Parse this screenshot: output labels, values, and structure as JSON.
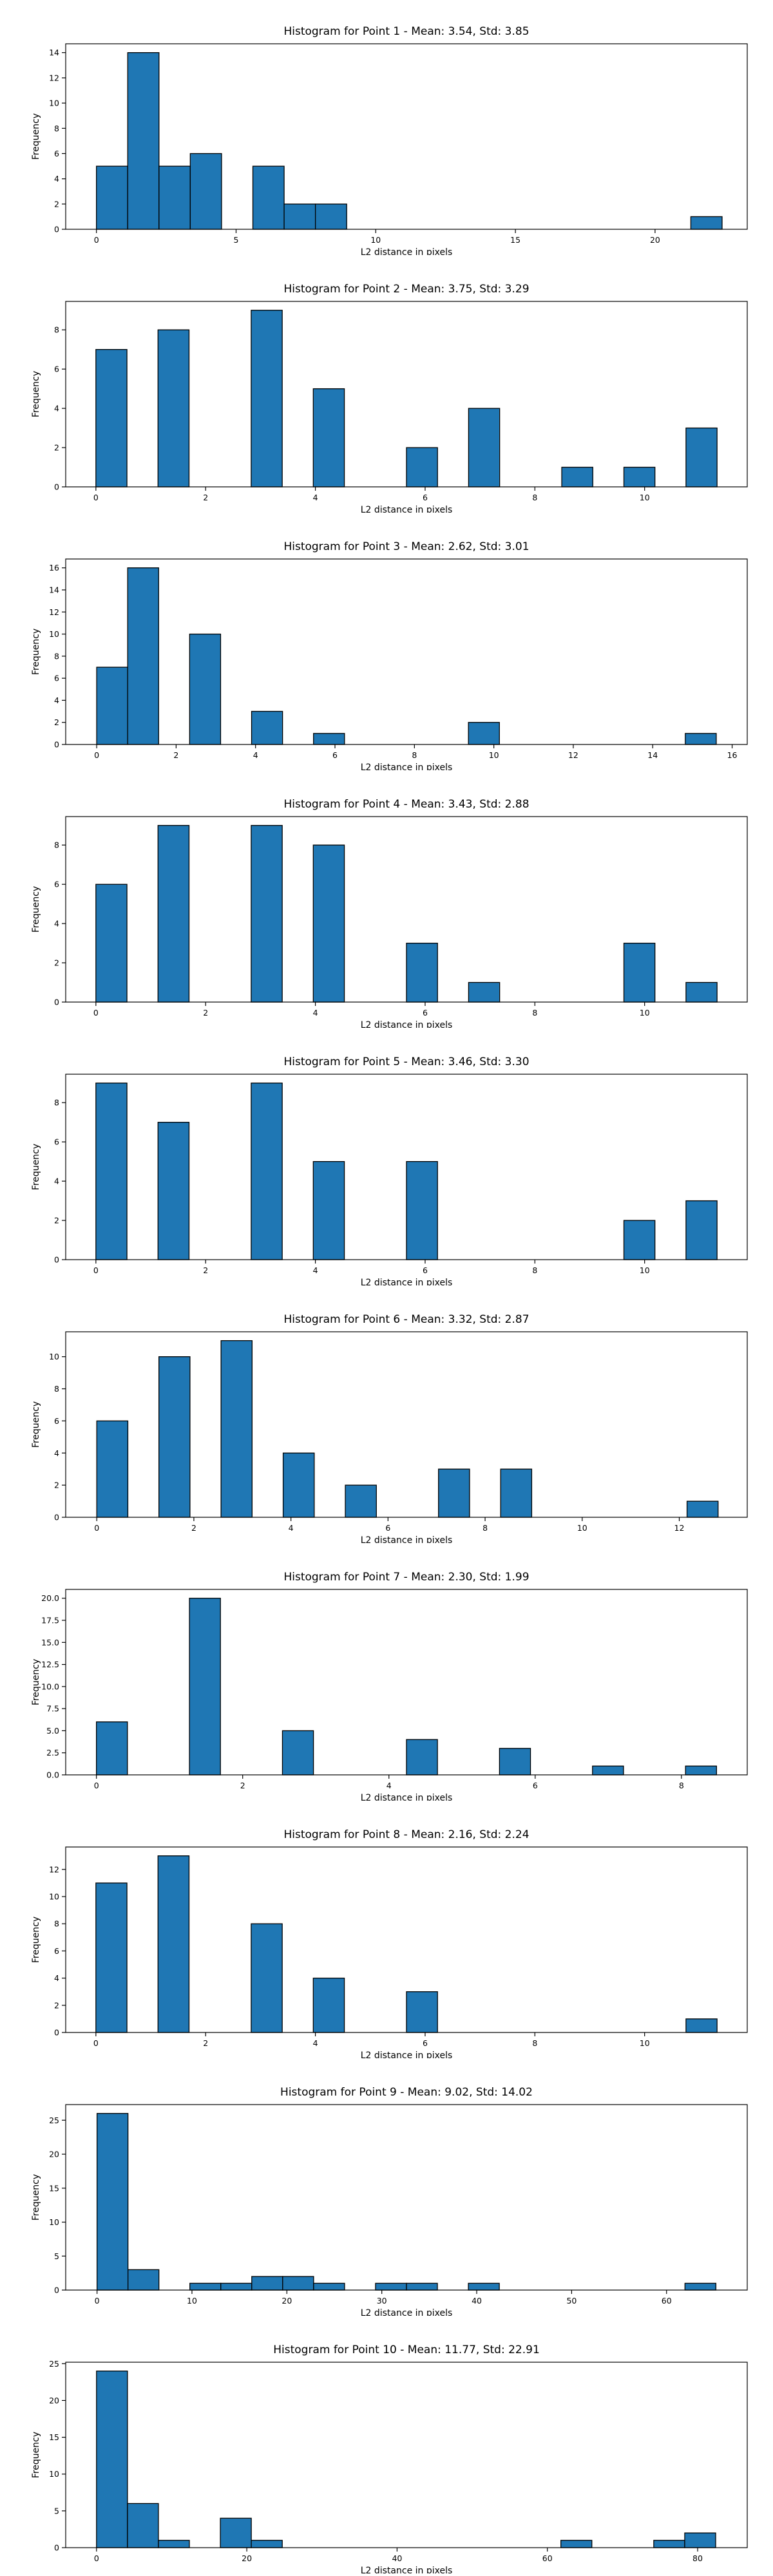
{
  "chart_data": [
    {
      "type": "bar",
      "title": "Histogram for Point 1 - Mean: 3.54, Std: 3.85",
      "xlabel": "L2 distance in pixels",
      "ylabel": "Frequency",
      "bin_width": 1.12,
      "xlim": [
        -1.1,
        23.3
      ],
      "ylim": [
        0,
        14.7
      ],
      "xticks": [
        0,
        5,
        10,
        15,
        20
      ],
      "yticks": [
        0,
        2,
        4,
        6,
        8,
        10,
        12,
        14
      ],
      "ytick_labels": [
        "0",
        "2",
        "4",
        "6",
        "8",
        "10",
        "12",
        "14"
      ],
      "bins": [
        {
          "x": 0.0,
          "count": 5
        },
        {
          "x": 1.12,
          "count": 14
        },
        {
          "x": 2.24,
          "count": 5
        },
        {
          "x": 3.36,
          "count": 6
        },
        {
          "x": 5.6,
          "count": 5
        },
        {
          "x": 6.72,
          "count": 2
        },
        {
          "x": 7.84,
          "count": 2
        },
        {
          "x": 21.28,
          "count": 1
        }
      ]
    },
    {
      "type": "bar",
      "title": "Histogram for Point 2 - Mean: 3.75, Std: 3.29",
      "xlabel": "L2 distance in pixels",
      "ylabel": "Frequency",
      "bin_width": 0.566,
      "xlim": [
        -0.55,
        11.87
      ],
      "ylim": [
        0,
        9.45
      ],
      "xticks": [
        0,
        2,
        4,
        6,
        8,
        10
      ],
      "yticks": [
        0,
        2,
        4,
        6,
        8
      ],
      "ytick_labels": [
        "0",
        "2",
        "4",
        "6",
        "8"
      ],
      "bins": [
        {
          "x": 0.0,
          "count": 7
        },
        {
          "x": 1.132,
          "count": 8
        },
        {
          "x": 2.83,
          "count": 9
        },
        {
          "x": 3.962,
          "count": 5
        },
        {
          "x": 5.66,
          "count": 2
        },
        {
          "x": 6.792,
          "count": 4
        },
        {
          "x": 8.49,
          "count": 1
        },
        {
          "x": 9.622,
          "count": 1
        },
        {
          "x": 10.754,
          "count": 3
        }
      ]
    },
    {
      "type": "bar",
      "title": "Histogram for Point 3 - Mean: 2.62, Std: 3.01",
      "xlabel": "L2 distance in pixels",
      "ylabel": "Frequency",
      "bin_width": 0.78,
      "xlim": [
        -0.78,
        16.38
      ],
      "ylim": [
        0,
        16.8
      ],
      "xticks": [
        0,
        2,
        4,
        6,
        8,
        10,
        12,
        14,
        16
      ],
      "yticks": [
        0,
        2,
        4,
        6,
        8,
        10,
        12,
        14,
        16
      ],
      "ytick_labels": [
        "0",
        "2",
        "4",
        "6",
        "8",
        "10",
        "12",
        "14",
        "16"
      ],
      "bins": [
        {
          "x": 0.0,
          "count": 7
        },
        {
          "x": 0.78,
          "count": 16
        },
        {
          "x": 2.34,
          "count": 10
        },
        {
          "x": 3.9,
          "count": 3
        },
        {
          "x": 5.46,
          "count": 1
        },
        {
          "x": 9.36,
          "count": 2
        },
        {
          "x": 14.82,
          "count": 1
        }
      ]
    },
    {
      "type": "bar",
      "title": "Histogram for Point 4 - Mean: 3.43, Std: 2.88",
      "xlabel": "L2 distance in pixels",
      "ylabel": "Frequency",
      "bin_width": 0.566,
      "xlim": [
        -0.55,
        11.87
      ],
      "ylim": [
        0,
        9.45
      ],
      "xticks": [
        0,
        2,
        4,
        6,
        8,
        10
      ],
      "yticks": [
        0,
        2,
        4,
        6,
        8
      ],
      "ytick_labels": [
        "0",
        "2",
        "4",
        "6",
        "8"
      ],
      "bins": [
        {
          "x": 0.0,
          "count": 6
        },
        {
          "x": 1.132,
          "count": 9
        },
        {
          "x": 2.83,
          "count": 9
        },
        {
          "x": 3.962,
          "count": 8
        },
        {
          "x": 5.66,
          "count": 3
        },
        {
          "x": 6.792,
          "count": 1
        },
        {
          "x": 9.622,
          "count": 3
        },
        {
          "x": 10.754,
          "count": 1
        }
      ]
    },
    {
      "type": "bar",
      "title": "Histogram for Point 5 - Mean: 3.46, Std: 3.30",
      "xlabel": "L2 distance in pixels",
      "ylabel": "Frequency",
      "bin_width": 0.566,
      "xlim": [
        -0.55,
        11.87
      ],
      "ylim": [
        0,
        9.45
      ],
      "xticks": [
        0,
        2,
        4,
        6,
        8,
        10
      ],
      "yticks": [
        0,
        2,
        4,
        6,
        8
      ],
      "ytick_labels": [
        "0",
        "2",
        "4",
        "6",
        "8"
      ],
      "bins": [
        {
          "x": 0.0,
          "count": 9
        },
        {
          "x": 1.132,
          "count": 7
        },
        {
          "x": 2.83,
          "count": 9
        },
        {
          "x": 3.962,
          "count": 5
        },
        {
          "x": 5.66,
          "count": 5
        },
        {
          "x": 9.622,
          "count": 2
        },
        {
          "x": 10.754,
          "count": 3
        }
      ]
    },
    {
      "type": "bar",
      "title": "Histogram for Point 6 - Mean: 3.32, Std: 2.87",
      "xlabel": "L2 distance in pixels",
      "ylabel": "Frequency",
      "bin_width": 0.64,
      "xlim": [
        -0.64,
        13.4
      ],
      "ylim": [
        0,
        11.55
      ],
      "xticks": [
        0,
        2,
        4,
        6,
        8,
        10,
        12
      ],
      "yticks": [
        0,
        2,
        4,
        6,
        8,
        10
      ],
      "ytick_labels": [
        "0",
        "2",
        "4",
        "6",
        "8",
        "10"
      ],
      "bins": [
        {
          "x": 0.0,
          "count": 6
        },
        {
          "x": 1.28,
          "count": 10
        },
        {
          "x": 2.56,
          "count": 11
        },
        {
          "x": 3.84,
          "count": 4
        },
        {
          "x": 5.12,
          "count": 2
        },
        {
          "x": 7.04,
          "count": 3
        },
        {
          "x": 8.32,
          "count": 3
        },
        {
          "x": 12.16,
          "count": 1
        }
      ]
    },
    {
      "type": "bar",
      "title": "Histogram for Point 7 - Mean: 2.30, Std: 1.99",
      "xlabel": "L2 distance in pixels",
      "ylabel": "Frequency",
      "bin_width": 0.424,
      "xlim": [
        -0.42,
        8.9
      ],
      "ylim": [
        0,
        21.0
      ],
      "xticks": [
        0,
        2,
        4,
        6,
        8
      ],
      "yticks": [
        0,
        2.5,
        5,
        7.5,
        10,
        12.5,
        15,
        17.5,
        20
      ],
      "ytick_labels": [
        "0.0",
        "2.5",
        "5.0",
        "7.5",
        "10.0",
        "12.5",
        "15.0",
        "17.5",
        "20.0"
      ],
      "bins": [
        {
          "x": 0.0,
          "count": 6
        },
        {
          "x": 1.272,
          "count": 20
        },
        {
          "x": 2.544,
          "count": 5
        },
        {
          "x": 4.24,
          "count": 4
        },
        {
          "x": 5.512,
          "count": 3
        },
        {
          "x": 6.784,
          "count": 1
        },
        {
          "x": 8.056,
          "count": 1
        }
      ]
    },
    {
      "type": "bar",
      "title": "Histogram for Point 8 - Mean: 2.16, Std: 2.24",
      "xlabel": "L2 distance in pixels",
      "ylabel": "Frequency",
      "bin_width": 0.566,
      "xlim": [
        -0.55,
        11.87
      ],
      "ylim": [
        0,
        13.65
      ],
      "xticks": [
        0,
        2,
        4,
        6,
        8,
        10
      ],
      "yticks": [
        0,
        2,
        4,
        6,
        8,
        10,
        12
      ],
      "ytick_labels": [
        "0",
        "2",
        "4",
        "6",
        "8",
        "10",
        "12"
      ],
      "bins": [
        {
          "x": 0.0,
          "count": 11
        },
        {
          "x": 1.132,
          "count": 13
        },
        {
          "x": 2.83,
          "count": 8
        },
        {
          "x": 3.962,
          "count": 4
        },
        {
          "x": 5.66,
          "count": 3
        },
        {
          "x": 10.754,
          "count": 1
        }
      ]
    },
    {
      "type": "bar",
      "title": "Histogram for Point 9 - Mean: 9.02, Std: 14.02",
      "xlabel": "L2 distance in pixels",
      "ylabel": "Frequency",
      "bin_width": 3.26,
      "xlim": [
        -3.3,
        68.5
      ],
      "ylim": [
        0,
        27.3
      ],
      "xticks": [
        0,
        10,
        20,
        30,
        40,
        50,
        60
      ],
      "yticks": [
        0,
        5,
        10,
        15,
        20,
        25
      ],
      "ytick_labels": [
        "0",
        "5",
        "10",
        "15",
        "20",
        "25"
      ],
      "bins": [
        {
          "x": 0.0,
          "count": 26
        },
        {
          "x": 3.26,
          "count": 3
        },
        {
          "x": 9.78,
          "count": 1
        },
        {
          "x": 13.04,
          "count": 1
        },
        {
          "x": 16.3,
          "count": 2
        },
        {
          "x": 19.56,
          "count": 2
        },
        {
          "x": 22.82,
          "count": 1
        },
        {
          "x": 29.34,
          "count": 1
        },
        {
          "x": 32.6,
          "count": 1
        },
        {
          "x": 39.12,
          "count": 1
        },
        {
          "x": 61.94,
          "count": 1
        }
      ]
    },
    {
      "type": "bar",
      "title": "Histogram for Point 10 - Mean: 11.77, Std: 22.91",
      "xlabel": "L2 distance in pixels",
      "ylabel": "Frequency",
      "bin_width": 4.12,
      "xlim": [
        -4.1,
        86.6
      ],
      "ylim": [
        0,
        25.2
      ],
      "xticks": [
        0,
        20,
        40,
        60,
        80
      ],
      "yticks": [
        0,
        5,
        10,
        15,
        20,
        25
      ],
      "ytick_labels": [
        "0",
        "5",
        "10",
        "15",
        "20",
        "25"
      ],
      "bins": [
        {
          "x": 0.0,
          "count": 24
        },
        {
          "x": 4.12,
          "count": 6
        },
        {
          "x": 8.24,
          "count": 1
        },
        {
          "x": 16.48,
          "count": 4
        },
        {
          "x": 20.6,
          "count": 1
        },
        {
          "x": 61.8,
          "count": 1
        },
        {
          "x": 74.16,
          "count": 1
        },
        {
          "x": 78.28,
          "count": 2
        }
      ]
    }
  ]
}
